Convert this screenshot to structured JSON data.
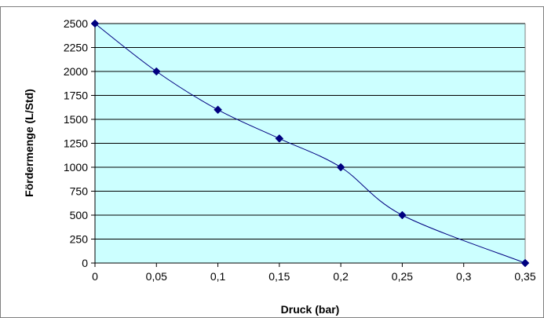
{
  "colors": {
    "plot_background": "#ccffff",
    "line": "#000080",
    "marker": "#000080",
    "grid": "#000000",
    "frame": "#808080"
  },
  "chart_data": {
    "type": "line",
    "title": "",
    "xlabel": "Druck (bar)",
    "ylabel": "Fördermenge (L/Std)",
    "xlim": [
      0,
      0.35
    ],
    "ylim": [
      0,
      2500
    ],
    "x_ticks": [
      "0",
      "0,05",
      "0,1",
      "0,15",
      "0,2",
      "0,25",
      "0,3",
      "0,35"
    ],
    "y_ticks": [
      "0",
      "250",
      "500",
      "750",
      "1000",
      "1250",
      "1500",
      "1750",
      "2000",
      "2250",
      "2500"
    ],
    "grid": true,
    "line_style": "smoothed",
    "marker": "diamond",
    "series": [
      {
        "x": [
          0,
          0.05,
          0.1,
          0.15,
          0.2,
          0.25,
          0.35
        ],
        "y": [
          2500,
          2000,
          1600,
          1300,
          1000,
          500,
          0
        ]
      }
    ]
  }
}
